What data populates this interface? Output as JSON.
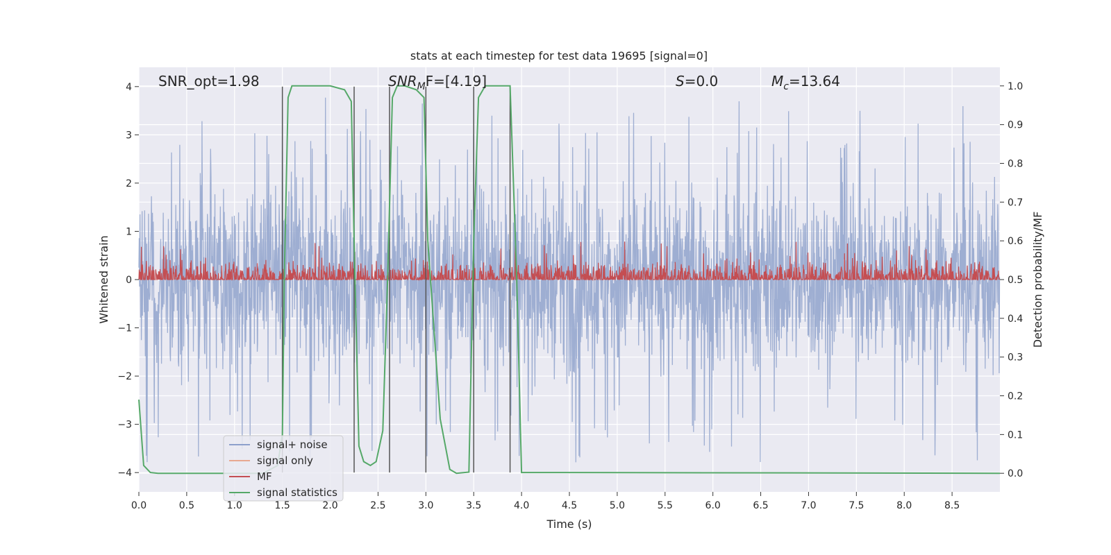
{
  "chart_data": {
    "type": "line",
    "title": "stats at each timestep for test data 19695 [signal=0]",
    "xlabel": "Time (s)",
    "ylabel_left": "Whitened strain",
    "ylabel_right": "Detection probability/MF",
    "xlim": [
      0.0,
      9.0
    ],
    "ylim_left": [
      -4.4,
      4.4
    ],
    "ylim_right": [
      -0.048,
      1.048
    ],
    "grid": true,
    "legend_position": "lower-left",
    "x_ticks": [
      0.0,
      0.5,
      1.0,
      1.5,
      2.0,
      2.5,
      3.0,
      3.5,
      4.0,
      4.5,
      5.0,
      5.5,
      6.0,
      6.5,
      7.0,
      7.5,
      8.0,
      8.5
    ],
    "x_tick_labels": [
      "0.0",
      "0.5",
      "1.0",
      "1.5",
      "2.0",
      "2.5",
      "3.0",
      "3.5",
      "4.0",
      "4.5",
      "5.0",
      "5.5",
      "6.0",
      "6.5",
      "7.0",
      "7.5",
      "8.0",
      "8.5"
    ],
    "y_left_ticks": [
      -4,
      -3,
      -2,
      -1,
      0,
      1,
      2,
      3,
      4
    ],
    "y_left_tick_labels": [
      "−4",
      "−3",
      "−2",
      "−1",
      "0",
      "1",
      "2",
      "3",
      "4"
    ],
    "y_right_ticks": [
      0.0,
      0.1,
      0.2,
      0.3,
      0.4,
      0.5,
      0.6,
      0.7,
      0.8,
      0.9,
      1.0
    ],
    "y_right_tick_labels": [
      "0.0",
      "0.1",
      "0.2",
      "0.3",
      "0.4",
      "0.5",
      "0.6",
      "0.7",
      "0.8",
      "0.9",
      "1.0"
    ],
    "annotations": {
      "snr_opt": "SNR_opt=1.98",
      "snr_mf_base": "SNR",
      "snr_mf_sub": "M",
      "snr_mf_rest": "F=[4.19]",
      "s_var": "S",
      "s_rest": "=0.0",
      "mc_var": "M",
      "mc_sub": "c",
      "mc_rest": "=13.64"
    },
    "legend": [
      {
        "label": "signal+ noise",
        "color": "#8da0cb"
      },
      {
        "label": "signal only",
        "color": "#e8a890"
      },
      {
        "label": "MF",
        "color": "#c44e52"
      },
      {
        "label": "signal statistics",
        "color": "#55a868"
      }
    ],
    "series_styles": {
      "noise_color": "#9aabd0",
      "noise_amplitude_typical": 1.6,
      "noise_amplitude_peak": 3.8,
      "mf_color": "#c44e52",
      "mf_range": [
        0.0,
        1.0
      ],
      "signal_stats_color": "#55a868"
    },
    "vertical_lines": {
      "x": [
        1.5,
        2.25,
        2.62,
        3.0,
        3.5,
        3.88
      ],
      "y_range": [
        -4.0,
        4.0
      ],
      "color": "#555555"
    },
    "signal_statistics": {
      "x": [
        0.0,
        0.05,
        0.12,
        0.2,
        1.3,
        1.45,
        1.5,
        1.52,
        1.56,
        1.6,
        1.7,
        2.0,
        2.15,
        2.22,
        2.25,
        2.3,
        2.35,
        2.42,
        2.48,
        2.55,
        2.6,
        2.65,
        2.7,
        2.78,
        2.9,
        2.98,
        3.02,
        3.15,
        3.25,
        3.32,
        3.45,
        3.5,
        3.55,
        3.62,
        3.88,
        3.95,
        4.0,
        4.4,
        9.0
      ],
      "y": [
        0.19,
        0.02,
        0.002,
        0.0,
        0.0,
        0.02,
        0.1,
        0.5,
        0.97,
        1.0,
        1.0,
        1.0,
        0.99,
        0.96,
        0.6,
        0.07,
        0.03,
        0.02,
        0.03,
        0.11,
        0.5,
        0.97,
        1.0,
        1.0,
        0.99,
        0.97,
        0.6,
        0.14,
        0.01,
        0.0,
        0.003,
        0.6,
        0.97,
        1.0,
        1.0,
        0.5,
        0.002,
        0.002,
        0.0
      ]
    }
  }
}
